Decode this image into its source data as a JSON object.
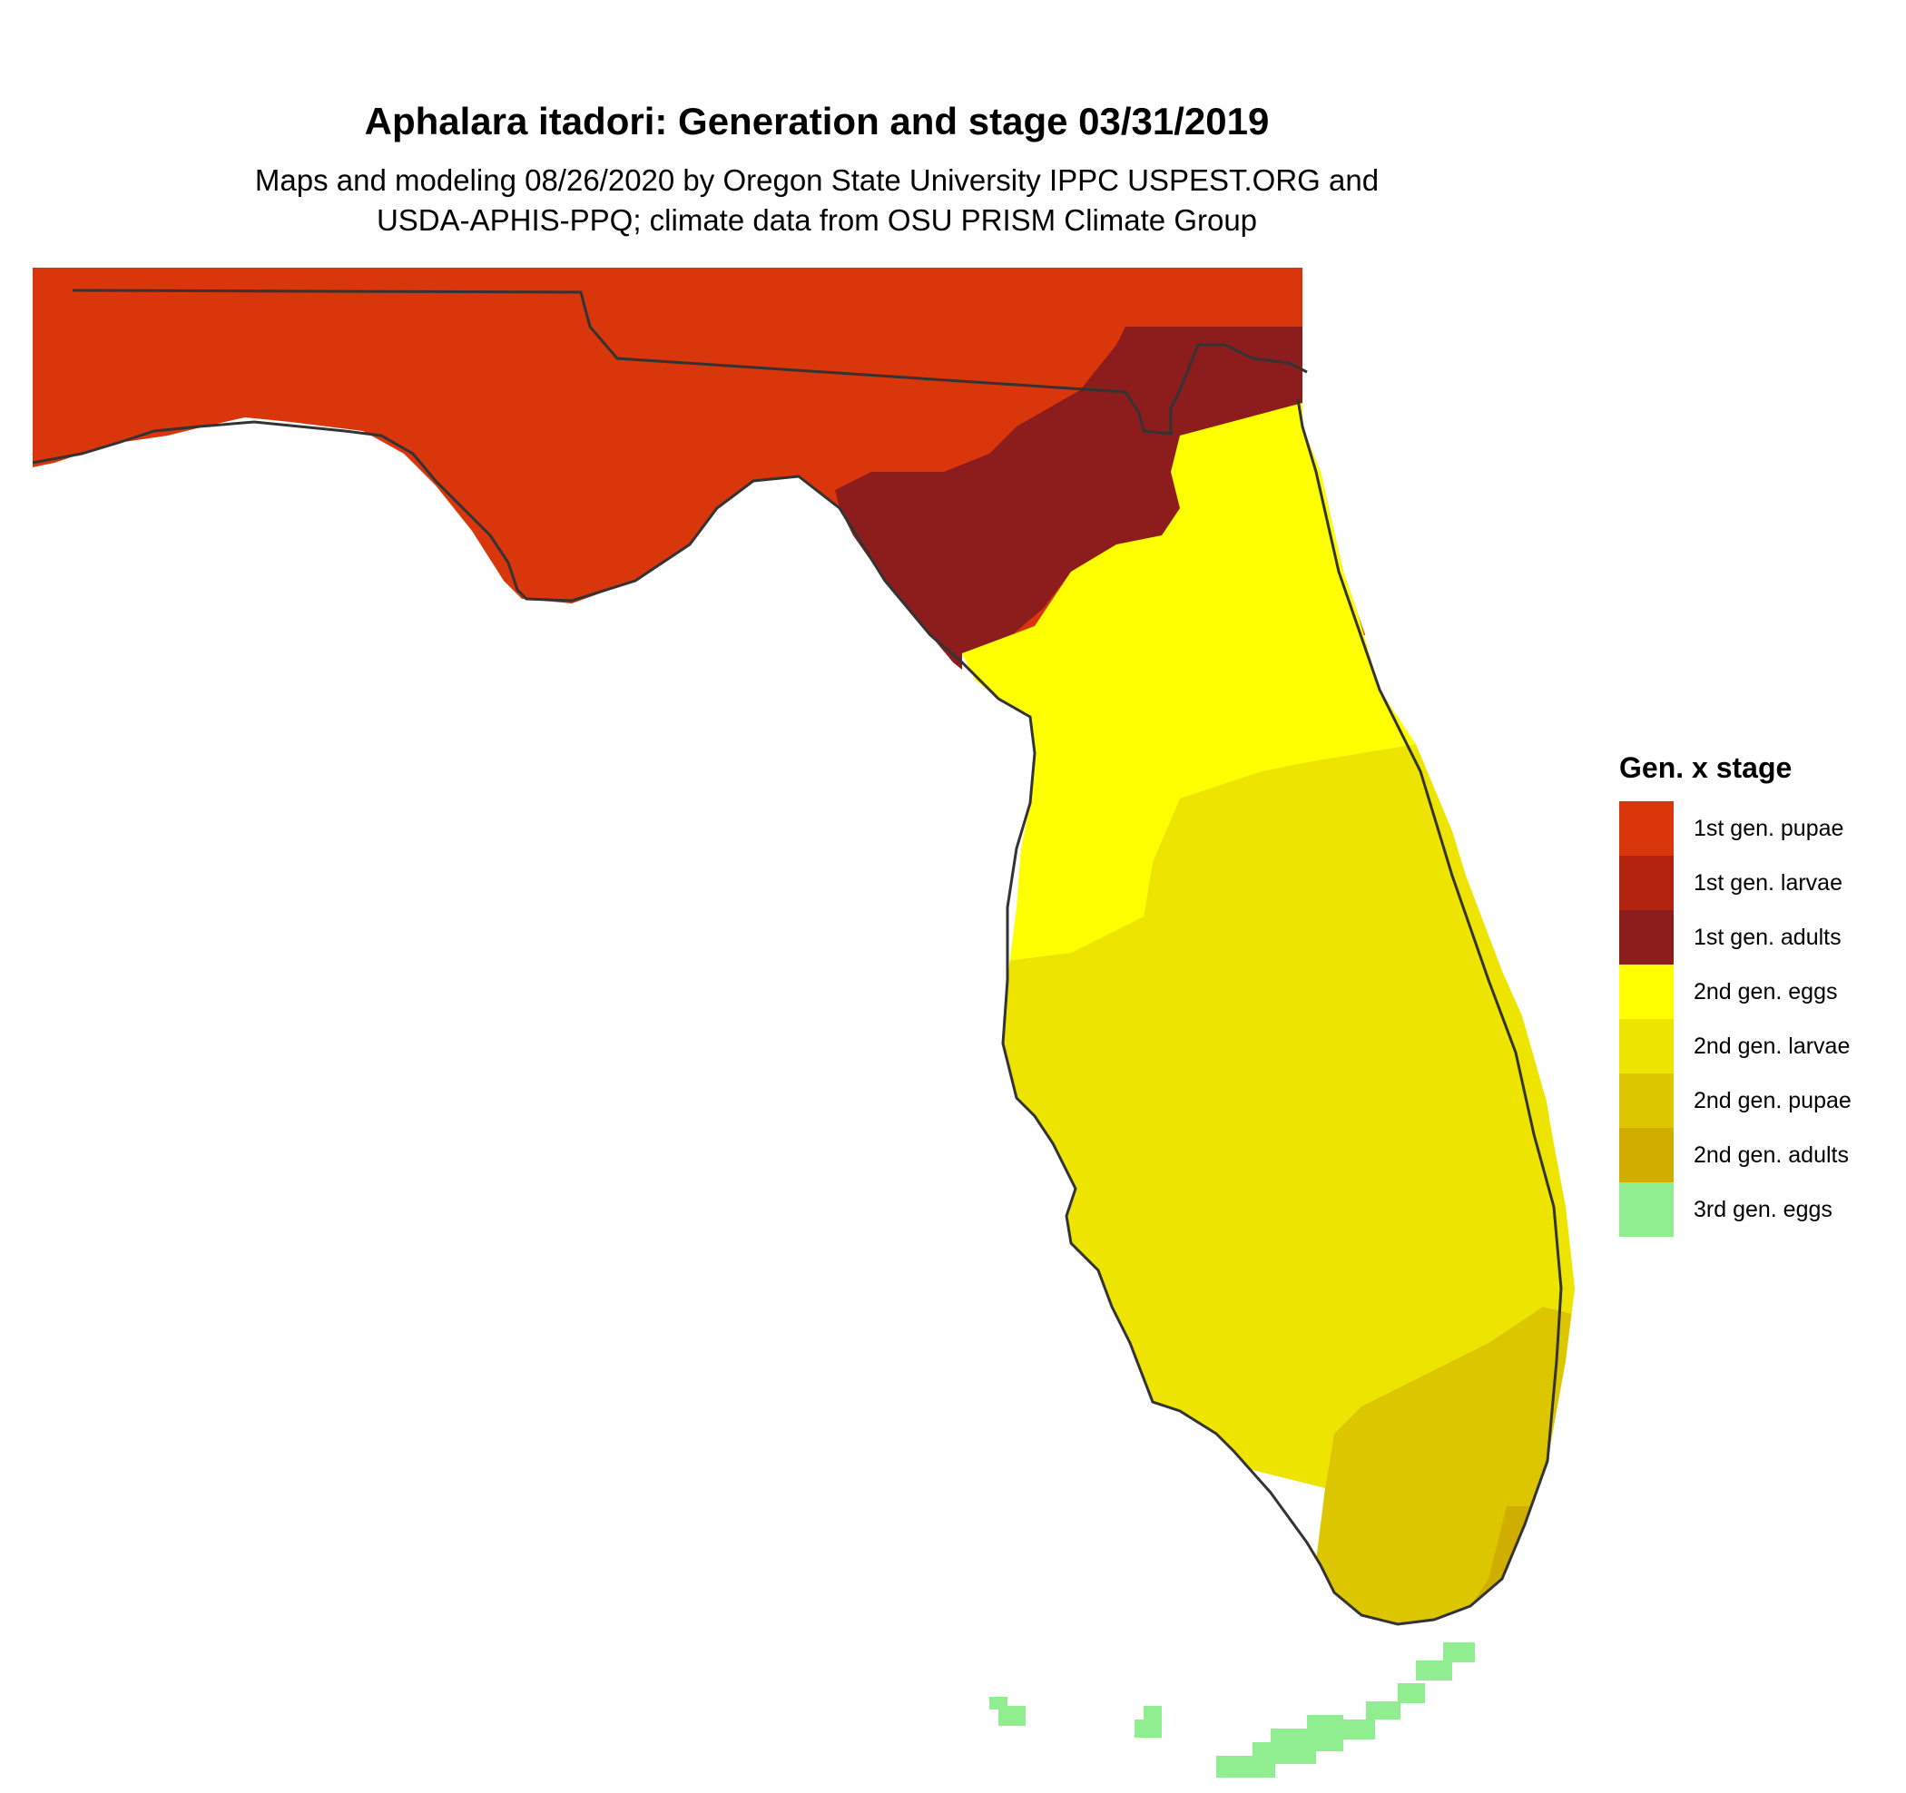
{
  "title": "Aphalara itadori: Generation and stage 03/31/2019",
  "subtitle_line1": "Maps and modeling 08/26/2020 by Oregon State University IPPC USPEST.ORG and",
  "subtitle_line2": "USDA-APHIS-PPQ; climate data from OSU PRISM Climate Group",
  "legend": {
    "title": "Gen. x stage",
    "items": [
      {
        "label": "1st gen. pupae",
        "color": "#d9360b"
      },
      {
        "label": "1st gen. larvae",
        "color": "#b3240f"
      },
      {
        "label": "1st gen. adults",
        "color": "#8d1c1c"
      },
      {
        "label": "2nd gen. eggs",
        "color": "#ffff00"
      },
      {
        "label": "2nd gen. larvae",
        "color": "#ede400"
      },
      {
        "label": "2nd gen. pupae",
        "color": "#dcc600"
      },
      {
        "label": "2nd gen. adults",
        "color": "#cfae00"
      },
      {
        "label": "3rd gen. eggs",
        "color": "#90ee90"
      }
    ]
  },
  "map": {
    "region": "Florida",
    "boundary_color": "#333333"
  }
}
